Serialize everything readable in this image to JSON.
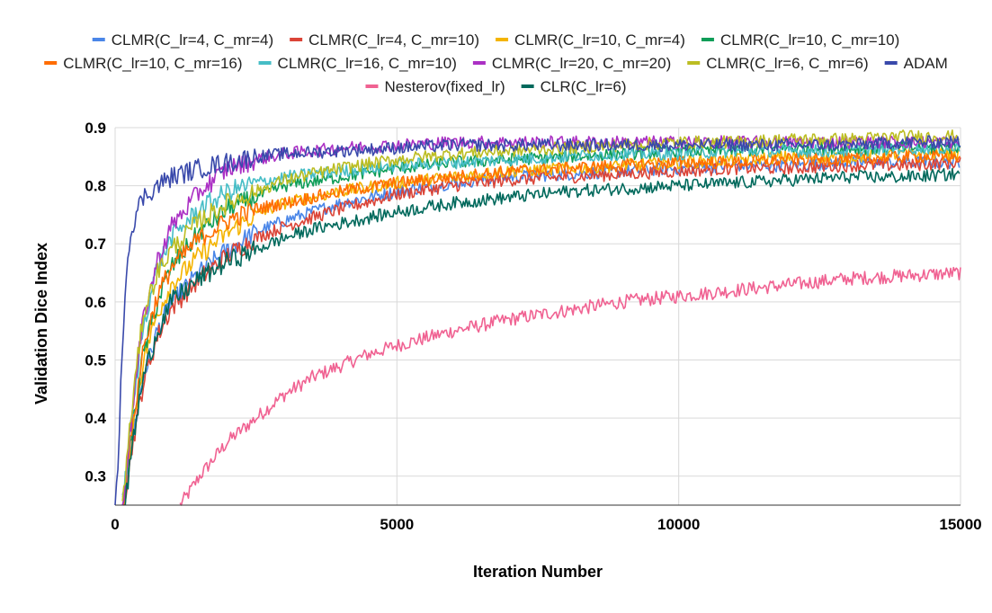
{
  "chart_data": {
    "type": "line",
    "title": "",
    "xlabel": "Iteration Number",
    "ylabel": "Validation Dice Index",
    "xlim": [
      0,
      15000
    ],
    "ylim": [
      0.25,
      0.9
    ],
    "x_ticks": [
      0,
      5000,
      10000,
      15000
    ],
    "x_tick_labels": [
      "0",
      "5000",
      "10000",
      "15000"
    ],
    "y_ticks": [
      0.3,
      0.4,
      0.5,
      0.6,
      0.7,
      0.8,
      0.9
    ],
    "y_tick_labels": [
      "0.3",
      "0.4",
      "0.5",
      "0.6",
      "0.7",
      "0.8",
      "0.9"
    ],
    "grid": true,
    "legend_position": "top",
    "series": [
      {
        "name": "CLMR(C_lr=4,  C_mr=4)",
        "color": "#4a86e8",
        "x": [
          130,
          300,
          500,
          750,
          1000,
          1500,
          2000,
          2500,
          3000,
          4000,
          5000,
          6000,
          7000,
          8000,
          9000,
          10000,
          11000,
          12000,
          13000,
          14000,
          15000
        ],
        "y": [
          0.25,
          0.36,
          0.47,
          0.55,
          0.6,
          0.65,
          0.69,
          0.72,
          0.74,
          0.77,
          0.79,
          0.805,
          0.815,
          0.82,
          0.825,
          0.83,
          0.835,
          0.835,
          0.84,
          0.84,
          0.84
        ]
      },
      {
        "name": "CLMR(C_lr=4,  C_mr=10)",
        "color": "#db4437",
        "x": [
          150,
          300,
          500,
          750,
          1000,
          1500,
          2000,
          2500,
          3000,
          4000,
          5000,
          6000,
          7000,
          8000,
          9000,
          10000,
          11000,
          12000,
          13000,
          14000,
          15000
        ],
        "y": [
          0.25,
          0.35,
          0.46,
          0.54,
          0.59,
          0.64,
          0.68,
          0.71,
          0.73,
          0.76,
          0.785,
          0.8,
          0.81,
          0.815,
          0.82,
          0.825,
          0.83,
          0.83,
          0.835,
          0.835,
          0.84
        ]
      },
      {
        "name": "CLMR(C_lr=10,  C_mr=4)",
        "color": "#f4b400",
        "x": [
          140,
          300,
          500,
          750,
          1000,
          1500,
          2000,
          2500,
          3000,
          4000,
          5000,
          6000,
          7000,
          8000,
          9000,
          10000,
          11000,
          12000,
          13000,
          14000,
          15000
        ],
        "y": [
          0.25,
          0.37,
          0.5,
          0.58,
          0.63,
          0.68,
          0.72,
          0.75,
          0.77,
          0.79,
          0.805,
          0.815,
          0.825,
          0.83,
          0.835,
          0.84,
          0.845,
          0.85,
          0.85,
          0.855,
          0.855
        ]
      },
      {
        "name": "CLMR(C_lr=10,  C_mr=10)",
        "color": "#0f9d58",
        "x": [
          140,
          300,
          500,
          750,
          1000,
          1500,
          2000,
          2500,
          3000,
          4000,
          5000,
          6000,
          7000,
          8000,
          9000,
          10000,
          11000,
          12000,
          13000,
          14000,
          15000
        ],
        "y": [
          0.25,
          0.38,
          0.51,
          0.6,
          0.66,
          0.72,
          0.76,
          0.78,
          0.8,
          0.815,
          0.83,
          0.84,
          0.845,
          0.85,
          0.855,
          0.86,
          0.86,
          0.865,
          0.865,
          0.865,
          0.865
        ]
      },
      {
        "name": "CLMR(C_lr=10,  C_mr=16)",
        "color": "#ff6d01",
        "x": [
          140,
          300,
          500,
          750,
          1000,
          1500,
          2000,
          2500,
          3000,
          4000,
          5000,
          6000,
          7000,
          8000,
          9000,
          10000,
          11000,
          12000,
          13000,
          14000,
          15000
        ],
        "y": [
          0.25,
          0.38,
          0.52,
          0.61,
          0.66,
          0.71,
          0.74,
          0.76,
          0.77,
          0.79,
          0.805,
          0.815,
          0.825,
          0.83,
          0.835,
          0.84,
          0.84,
          0.845,
          0.845,
          0.85,
          0.85
        ]
      },
      {
        "name": "CLMR(C_lr=16,  C_mr=10)",
        "color": "#46bdc6",
        "x": [
          130,
          300,
          500,
          750,
          1000,
          1500,
          2000,
          2500,
          3000,
          4000,
          5000,
          6000,
          7000,
          8000,
          9000,
          10000,
          11000,
          12000,
          13000,
          14000,
          15000
        ],
        "y": [
          0.25,
          0.4,
          0.56,
          0.66,
          0.71,
          0.76,
          0.79,
          0.805,
          0.815,
          0.825,
          0.835,
          0.84,
          0.845,
          0.85,
          0.855,
          0.855,
          0.86,
          0.86,
          0.86,
          0.865,
          0.865
        ]
      },
      {
        "name": "CLMR(C_lr=20,  C_mr=20)",
        "color": "#ab30c4",
        "x": [
          130,
          300,
          500,
          750,
          1000,
          1500,
          2000,
          2500,
          3000,
          4000,
          5000,
          6000,
          7000,
          8000,
          9000,
          10000,
          11000,
          12000,
          13000,
          14000,
          15000
        ],
        "y": [
          0.25,
          0.41,
          0.57,
          0.67,
          0.73,
          0.79,
          0.83,
          0.845,
          0.855,
          0.865,
          0.87,
          0.875,
          0.875,
          0.875,
          0.875,
          0.875,
          0.875,
          0.875,
          0.875,
          0.875,
          0.875
        ]
      },
      {
        "name": "CLMR(C_lr=6,  C_mr=6)",
        "color": "#bcbd22",
        "x": [
          130,
          300,
          500,
          750,
          1000,
          1500,
          2000,
          2500,
          3000,
          4000,
          5000,
          6000,
          7000,
          8000,
          9000,
          10000,
          11000,
          12000,
          13000,
          14000,
          15000
        ],
        "y": [
          0.25,
          0.42,
          0.58,
          0.65,
          0.69,
          0.74,
          0.77,
          0.79,
          0.81,
          0.83,
          0.845,
          0.855,
          0.86,
          0.865,
          0.87,
          0.875,
          0.875,
          0.88,
          0.88,
          0.885,
          0.885
        ]
      },
      {
        "name": "ADAM",
        "color": "#3949ab",
        "x": [
          0,
          50,
          100,
          150,
          200,
          300,
          400,
          500,
          750,
          1000,
          1500,
          2000,
          2500,
          3000,
          4000,
          5000,
          6000,
          7000,
          8000,
          9000,
          10000,
          11000,
          12000,
          13000,
          14000,
          15000
        ],
        "y": [
          0.25,
          0.3,
          0.45,
          0.57,
          0.66,
          0.73,
          0.76,
          0.78,
          0.8,
          0.815,
          0.83,
          0.84,
          0.85,
          0.855,
          0.86,
          0.865,
          0.87,
          0.87,
          0.87,
          0.87,
          0.87,
          0.87,
          0.87,
          0.87,
          0.875,
          0.875
        ]
      },
      {
        "name": "Nesterov(fixed_lr)",
        "color": "#f06292",
        "x": [
          1150,
          1300,
          1500,
          1750,
          2000,
          2500,
          3000,
          3500,
          4000,
          4500,
          5000,
          6000,
          7000,
          8000,
          9000,
          10000,
          11000,
          12000,
          13000,
          14000,
          15000
        ],
        "y": [
          0.25,
          0.27,
          0.3,
          0.33,
          0.36,
          0.4,
          0.44,
          0.47,
          0.49,
          0.51,
          0.525,
          0.55,
          0.57,
          0.585,
          0.6,
          0.61,
          0.62,
          0.63,
          0.64,
          0.645,
          0.65
        ]
      },
      {
        "name": "CLR(C_lr=6)",
        "color": "#00695c",
        "x": [
          180,
          300,
          500,
          750,
          1000,
          1500,
          2000,
          2500,
          3000,
          3500,
          4000,
          5000,
          6000,
          7000,
          8000,
          9000,
          10000,
          11000,
          12000,
          13000,
          14000,
          15000
        ],
        "y": [
          0.25,
          0.35,
          0.47,
          0.55,
          0.6,
          0.64,
          0.67,
          0.69,
          0.71,
          0.725,
          0.735,
          0.755,
          0.77,
          0.78,
          0.79,
          0.795,
          0.8,
          0.805,
          0.81,
          0.815,
          0.815,
          0.82
        ]
      }
    ]
  }
}
